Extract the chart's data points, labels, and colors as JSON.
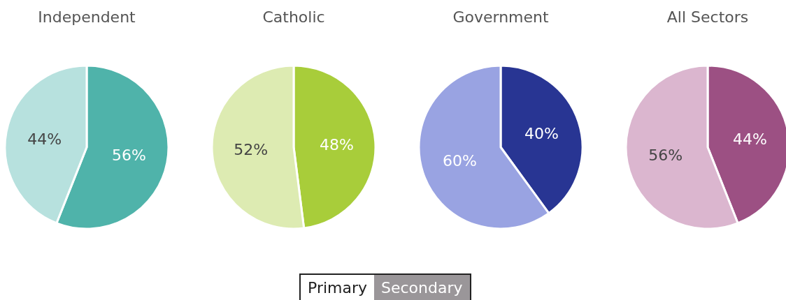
{
  "chart_data": [
    {
      "type": "pie",
      "title": "Independent",
      "categories": [
        null,
        null
      ],
      "values": [
        56,
        44
      ],
      "colors": [
        "#4fb3aa",
        "#b7e1de"
      ],
      "value_labels": [
        "56%",
        "44%"
      ]
    },
    {
      "type": "pie",
      "title": "Catholic",
      "categories": [
        null,
        null
      ],
      "values": [
        48,
        52
      ],
      "colors": [
        "#a8cd3a",
        "#ddebb2"
      ],
      "value_labels": [
        "48%",
        "52%"
      ]
    },
    {
      "type": "pie",
      "title": "Government",
      "categories": [
        null,
        null
      ],
      "values": [
        40,
        60
      ],
      "colors": [
        "#283593",
        "#99a3e2"
      ],
      "value_labels": [
        "40%",
        "60%"
      ]
    },
    {
      "type": "pie",
      "title": "All Sectors",
      "categories": [
        null,
        null
      ],
      "values": [
        44,
        56
      ],
      "colors": [
        "#9c5083",
        "#dbb6cf"
      ],
      "value_labels": [
        "44%",
        "56%"
      ]
    },
    {
      "type": "other",
      "annotations": [
        "Primary",
        "Secondary"
      ]
    }
  ]
}
